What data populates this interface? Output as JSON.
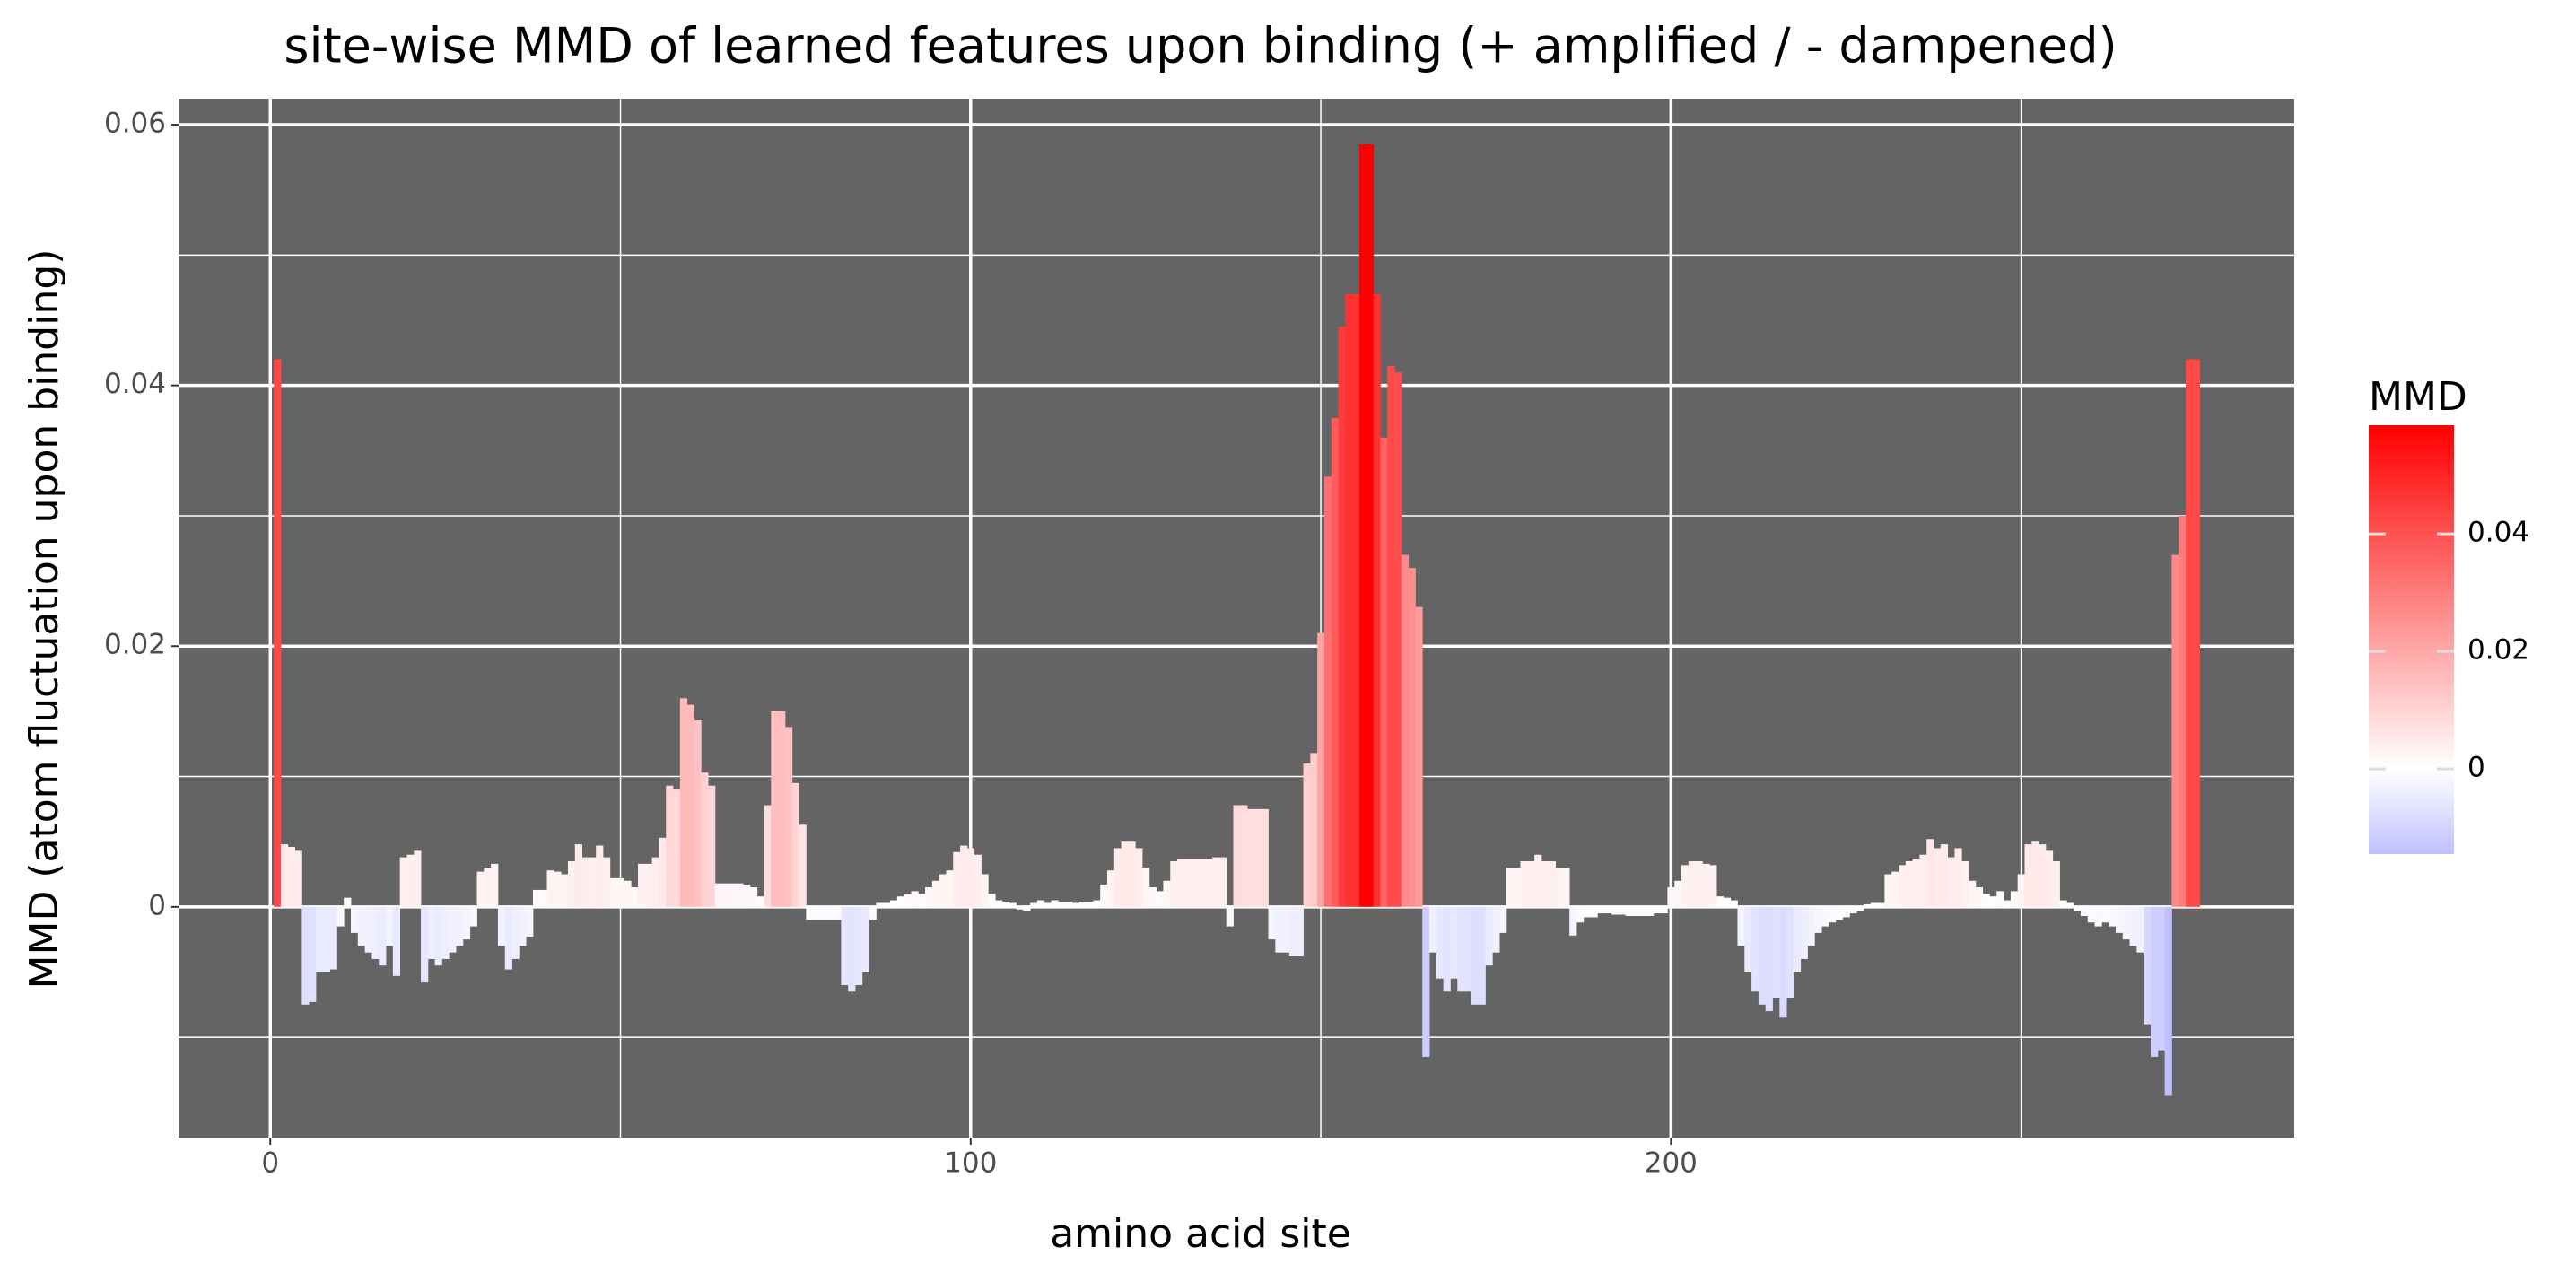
{
  "chart_data": {
    "type": "bar",
    "title": "site-wise MMD of learned features upon binding  (+ amplified / - dampened)",
    "x_label": "amino acid site",
    "y_label": "MMD (atom fluctuation upon binding)",
    "legend_title": "MMD",
    "colorscale": {
      "low": "#0000ff",
      "mid": "#ffffff",
      "high": "#ff0000"
    },
    "legend_ticks": [
      0,
      0.02,
      0.04
    ],
    "xlim": [
      -13.1,
      289
    ],
    "ylim": [
      -0.0177,
      0.062
    ],
    "xticks": [
      0,
      100,
      200
    ],
    "yticks": [
      0,
      0.02,
      0.04,
      0.06
    ],
    "x_minor_ticks": [
      50,
      150,
      250
    ],
    "y_minor_ticks": [
      -0.01,
      0.01,
      0.03,
      0.05
    ],
    "grid": true,
    "x": [
      1,
      2,
      3,
      4,
      5,
      6,
      7,
      8,
      9,
      10,
      11,
      12,
      13,
      14,
      15,
      16,
      17,
      18,
      19,
      20,
      21,
      22,
      23,
      24,
      25,
      26,
      27,
      28,
      29,
      30,
      31,
      32,
      33,
      34,
      35,
      36,
      37,
      38,
      39,
      40,
      41,
      42,
      43,
      44,
      45,
      46,
      47,
      48,
      49,
      50,
      51,
      52,
      53,
      54,
      55,
      56,
      57,
      58,
      59,
      60,
      61,
      62,
      63,
      64,
      65,
      66,
      67,
      68,
      69,
      70,
      71,
      72,
      73,
      74,
      75,
      76,
      77,
      78,
      79,
      80,
      81,
      82,
      83,
      84,
      85,
      86,
      87,
      88,
      89,
      90,
      91,
      92,
      93,
      94,
      95,
      96,
      97,
      98,
      99,
      100,
      101,
      102,
      103,
      104,
      105,
      106,
      107,
      108,
      109,
      110,
      111,
      112,
      113,
      114,
      115,
      116,
      117,
      118,
      119,
      120,
      121,
      122,
      123,
      124,
      125,
      126,
      127,
      128,
      129,
      130,
      131,
      132,
      133,
      134,
      135,
      136,
      137,
      138,
      139,
      140,
      141,
      142,
      143,
      144,
      145,
      146,
      147,
      148,
      149,
      150,
      151,
      152,
      153,
      154,
      155,
      156,
      157,
      158,
      159,
      160,
      161,
      162,
      163,
      164,
      165,
      166,
      167,
      168,
      169,
      170,
      171,
      172,
      173,
      174,
      175,
      176,
      177,
      178,
      179,
      180,
      181,
      182,
      183,
      184,
      185,
      186,
      187,
      188,
      189,
      190,
      191,
      192,
      193,
      194,
      195,
      196,
      197,
      198,
      199,
      200,
      201,
      202,
      203,
      204,
      205,
      206,
      207,
      208,
      209,
      210,
      211,
      212,
      213,
      214,
      215,
      216,
      217,
      218,
      219,
      220,
      221,
      222,
      223,
      224,
      225,
      226,
      227,
      228,
      229,
      230,
      231,
      232,
      233,
      234,
      235,
      236,
      237,
      238,
      239,
      240,
      241,
      242,
      243,
      244,
      245,
      246,
      247,
      248,
      249,
      250,
      251,
      252,
      253,
      254,
      255,
      256,
      257,
      258,
      259,
      260,
      261,
      262,
      263,
      264,
      265,
      266,
      267,
      268,
      269,
      270,
      271,
      272,
      273,
      274,
      275
    ],
    "values": [
      0.042,
      0.0048,
      0.0046,
      0.0043,
      -0.0075,
      -0.0073,
      -0.005,
      -0.005,
      -0.0048,
      -0.0015,
      0.0007,
      -0.002,
      -0.003,
      -0.0035,
      -0.004,
      -0.0045,
      -0.003,
      -0.0053,
      0.0038,
      0.004,
      0.0043,
      -0.0058,
      -0.004,
      -0.0045,
      -0.004,
      -0.0035,
      -0.003,
      -0.0025,
      -0.0015,
      0.0027,
      0.003,
      0.0033,
      -0.003,
      -0.0048,
      -0.004,
      -0.003,
      -0.0023,
      0.0013,
      0.0013,
      0.0028,
      0.0027,
      0.0025,
      0.0035,
      0.0048,
      0.0038,
      0.0038,
      0.0047,
      0.0038,
      0.0022,
      0.0022,
      0.002,
      0.0015,
      0.0033,
      0.0033,
      0.0038,
      0.0053,
      0.0093,
      0.009,
      0.016,
      0.0155,
      0.0143,
      0.0103,
      0.0093,
      0.0018,
      0.0018,
      0.0018,
      0.0018,
      0.0017,
      0.0015,
      0.0008,
      0.0078,
      0.015,
      0.015,
      0.0138,
      0.0095,
      0.0063,
      -0.001,
      -0.001,
      -0.001,
      -0.001,
      -0.001,
      -0.006,
      -0.0065,
      -0.006,
      -0.005,
      -0.001,
      0.0003,
      0.0003,
      0.0005,
      0.0008,
      0.001,
      0.0012,
      0.001,
      0.0015,
      0.002,
      0.0025,
      0.0028,
      0.0042,
      0.0047,
      0.0045,
      0.004,
      0.0025,
      0.001,
      0.0005,
      0.0004,
      0.0003,
      -0.0002,
      -0.0003,
      0.0003,
      0.0005,
      0.0003,
      0.0005,
      0.0004,
      0.0004,
      0.0003,
      0.0004,
      0.0004,
      0.0005,
      0.0017,
      0.0028,
      0.0045,
      0.005,
      0.005,
      0.0045,
      0.003,
      0.0015,
      0.0012,
      0.002,
      0.0035,
      0.0037,
      0.0037,
      0.0037,
      0.0037,
      0.0037,
      0.0038,
      0.0038,
      -0.0015,
      0.0078,
      0.0078,
      0.0075,
      0.0075,
      0.0075,
      -0.0025,
      -0.0035,
      -0.0035,
      -0.0038,
      -0.0038,
      0.011,
      0.0118,
      0.021,
      0.033,
      0.0375,
      0.0445,
      0.047,
      0.047,
      0.0585,
      0.0585,
      0.047,
      0.036,
      0.0415,
      0.041,
      0.027,
      0.026,
      0.023,
      -0.0115,
      -0.0035,
      -0.0055,
      -0.0065,
      -0.0055,
      -0.0065,
      -0.0065,
      -0.0075,
      -0.0075,
      -0.0045,
      -0.0035,
      -0.002,
      0.003,
      0.003,
      0.0035,
      0.0035,
      0.004,
      0.0035,
      0.0035,
      0.003,
      0.003,
      -0.0022,
      -0.0012,
      -0.0008,
      -0.0008,
      -0.0005,
      -0.0005,
      -0.0006,
      -0.0006,
      -0.0007,
      -0.0007,
      -0.0007,
      -0.0007,
      -0.0005,
      -0.0005,
      0.0015,
      0.002,
      0.0032,
      0.0035,
      0.0035,
      0.0033,
      0.0032,
      0.0008,
      0.0007,
      0.0005,
      -0.003,
      -0.005,
      -0.0065,
      -0.0075,
      -0.008,
      -0.007,
      -0.0085,
      -0.007,
      -0.005,
      -0.004,
      -0.003,
      -0.002,
      -0.0015,
      -0.0012,
      -0.001,
      -0.0008,
      -0.0005,
      -0.0003,
      0.0002,
      0.0003,
      0.0003,
      0.0025,
      0.0027,
      0.0032,
      0.0035,
      0.0037,
      0.004,
      0.0052,
      0.0045,
      0.0048,
      0.0038,
      0.0045,
      0.0035,
      0.002,
      0.0015,
      0.001,
      0.0008,
      0.0012,
      0.0005,
      0.0012,
      0.0025,
      0.0048,
      0.005,
      0.0048,
      0.0043,
      0.0035,
      0.0005,
      0.0003,
      -0.0003,
      -0.0007,
      -0.0012,
      -0.0015,
      -0.0012,
      -0.0015,
      -0.002,
      -0.0025,
      -0.003,
      -0.0035,
      -0.009,
      -0.0115,
      -0.011,
      -0.0145,
      0.027,
      0.03,
      0.042,
      0.042
    ]
  }
}
